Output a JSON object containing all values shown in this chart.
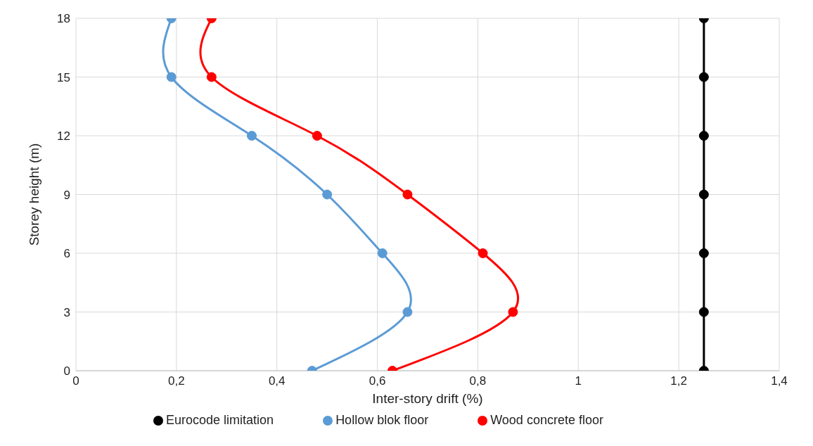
{
  "chart_data": {
    "type": "line",
    "xlabel": "Inter-story drift  (%)",
    "ylabel": "Storey height (m)",
    "xlim": [
      0,
      1.4
    ],
    "xticks": [
      0,
      {
        "value": 0.2,
        "label": "0,2"
      },
      {
        "value": 0.4,
        "label": "0,4"
      },
      {
        "value": 0.6,
        "label": "0,6"
      },
      {
        "value": 0.8,
        "label": "0,8"
      },
      1,
      {
        "value": 1.2,
        "label": "1,2"
      },
      {
        "value": 1.4,
        "label": "1,4"
      }
    ],
    "ylim": [
      0,
      18
    ],
    "yticks": [
      0,
      3,
      6,
      9,
      12,
      15,
      18
    ],
    "grid": true,
    "legend": "bottom",
    "marker": "circle",
    "line_style": "solid",
    "series": [
      {
        "name": "Hollow blok floor",
        "color": "#5b9bd5",
        "x": [
          0.47,
          0.66,
          0.61,
          0.5,
          0.35,
          0.19,
          0.19
        ],
        "values": [
          0,
          3,
          6,
          9,
          12,
          15,
          18
        ]
      },
      {
        "name": "Wood concrete floor",
        "color": "#ff0000",
        "x": [
          0.63,
          0.87,
          0.81,
          0.66,
          0.48,
          0.27,
          0.27
        ],
        "values": [
          0,
          3,
          6,
          9,
          12,
          15,
          18
        ]
      },
      {
        "name": "Eurocode limitation",
        "color": "#000000",
        "x": [
          1.25,
          1.25,
          1.25,
          1.25,
          1.25,
          1.25,
          1.25
        ],
        "values": [
          0,
          3,
          6,
          9,
          12,
          15,
          18
        ]
      }
    ]
  }
}
